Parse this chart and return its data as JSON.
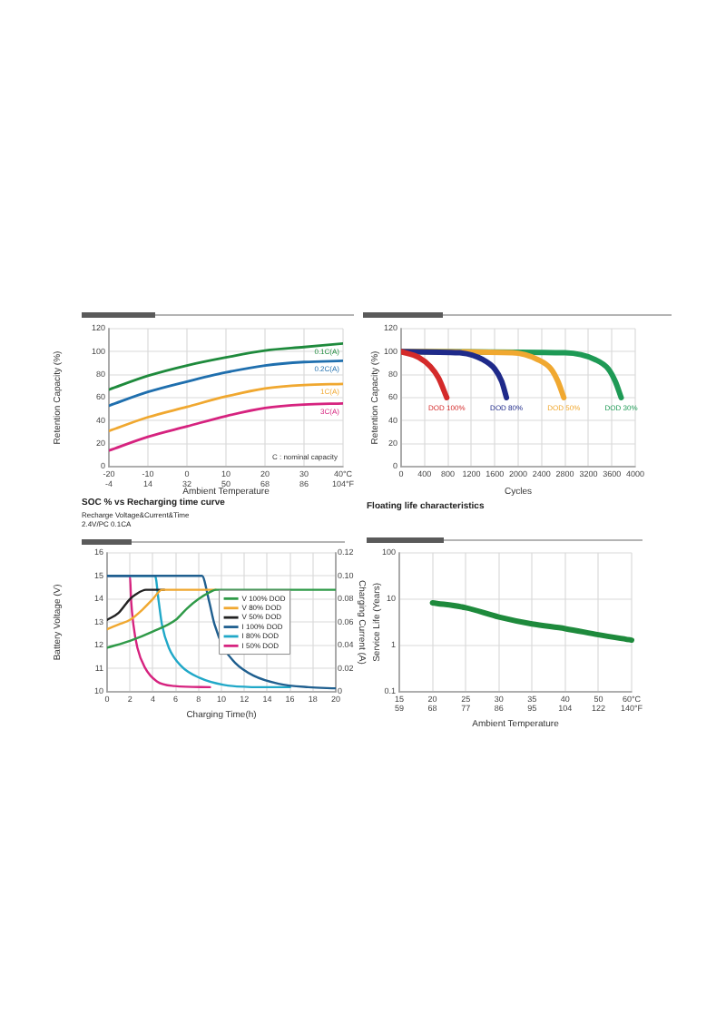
{
  "chart_data": [
    {
      "type": "line",
      "ylabel": "Retention Capacity (%)",
      "xlabel": "Ambient Temperature",
      "x": [
        -20,
        -10,
        0,
        10,
        20,
        30,
        40
      ],
      "series": [
        {
          "name": "0.1C(A)",
          "color": "#1e8a3c",
          "values": [
            67,
            79,
            88,
            95,
            101,
            104,
            107
          ]
        },
        {
          "name": "0.2C(A)",
          "color": "#1f6fae",
          "values": [
            53,
            65,
            74,
            82,
            88,
            91,
            92
          ]
        },
        {
          "name": "1C(A)",
          "color": "#f0a830",
          "values": [
            31,
            43,
            52,
            61,
            68,
            71,
            72
          ]
        },
        {
          "name": "3C(A)",
          "color": "#d6237f",
          "values": [
            14,
            26,
            35,
            44,
            51,
            54,
            55
          ]
        }
      ],
      "xlim": [
        -20,
        40
      ],
      "xticks": [
        -20,
        -10,
        0,
        10,
        20,
        30,
        {
          "value": 40,
          "label": "40°C"
        }
      ],
      "x2lim": [
        -4,
        104
      ],
      "x2ticks": [
        -4,
        14,
        32,
        50,
        68,
        86,
        {
          "value": 104,
          "label": "104°F"
        }
      ],
      "ylim": [
        0,
        120
      ],
      "yticks": [
        0,
        20,
        40,
        60,
        80,
        100,
        120
      ],
      "grid": true,
      "annotations": [
        "C : nominal capacity"
      ]
    },
    {
      "type": "line",
      "ylabel": "Retention Capacity (%)",
      "xlabel": "Cycles",
      "series": [
        {
          "name": "DOD 100%",
          "color": "#d42a2a",
          "x": [
            0,
            300,
            500,
            640,
            780
          ],
          "values": [
            100,
            95,
            87,
            77,
            60
          ]
        },
        {
          "name": "DOD 80%",
          "color": "#1f2a8a",
          "x": [
            0,
            1000,
            1400,
            1600,
            1720,
            1800
          ],
          "values": [
            100,
            99,
            93,
            85,
            74,
            60
          ]
        },
        {
          "name": "DOD 50%",
          "color": "#f0a830",
          "x": [
            0,
            1900,
            2340,
            2560,
            2680,
            2780
          ],
          "values": [
            100,
            99,
            93,
            85,
            74,
            60
          ]
        },
        {
          "name": "DOD 30%",
          "color": "#1e9a55",
          "x": [
            0,
            2800,
            3320,
            3540,
            3660,
            3760
          ],
          "values": [
            100,
            99,
            93,
            85,
            74,
            60
          ]
        }
      ],
      "xlim": [
        0,
        4000
      ],
      "xticks": [
        0,
        400,
        800,
        1200,
        1600,
        2000,
        2400,
        2800,
        3200,
        3600,
        4000
      ],
      "ylim": [
        0,
        120
      ],
      "yticks": [
        0,
        20,
        40,
        60,
        80,
        100,
        120
      ],
      "grid": true
    },
    {
      "type": "line",
      "title": "SOC % vs Recharging time curve",
      "subtitle": "Recharge Voltage&Current&Time\n2.4V/PC 0.1CA",
      "xlabel": "Charging Time(h)",
      "ylabel": "Battery Voltage (V)",
      "y2label": "Charging Current (A)",
      "series": [
        {
          "name": "V 100% DOD",
          "color": "#2f9a48",
          "x": [
            0,
            2,
            4,
            6,
            7,
            8,
            9,
            9.5,
            20
          ],
          "values": [
            11.9,
            12.2,
            12.6,
            13.1,
            13.6,
            14.0,
            14.3,
            14.4,
            14.4
          ]
        },
        {
          "name": "V 80% DOD",
          "color": "#f0a830",
          "x": [
            0,
            1,
            2,
            3,
            4,
            4.8,
            9.5
          ],
          "values": [
            12.7,
            12.9,
            13.1,
            13.5,
            14.0,
            14.4,
            14.4
          ]
        },
        {
          "name": "V 50% DOD",
          "color": "#222222",
          "x": [
            0,
            1,
            2,
            2.5,
            3.4,
            5
          ],
          "values": [
            13.1,
            13.4,
            14.0,
            14.2,
            14.4,
            14.4
          ]
        },
        {
          "name": "I 100% DOD",
          "color": "#1f5f8f",
          "axis": "y2",
          "x": [
            0,
            8.3,
            8.9,
            9.4,
            10.2,
            11.2,
            12.8,
            15,
            17.6,
            20
          ],
          "values": [
            0.1,
            0.1,
            0.079,
            0.058,
            0.038,
            0.025,
            0.014,
            0.007,
            0.004,
            0.003
          ]
        },
        {
          "name": "I 80% DOD",
          "color": "#20a8c8",
          "axis": "y2",
          "x": [
            0,
            4.2,
            4.5,
            4.8,
            5.4,
            6.5,
            8.1,
            10.2,
            13.4,
            16
          ],
          "values": [
            0.1,
            0.1,
            0.079,
            0.058,
            0.038,
            0.022,
            0.012,
            0.006,
            0.004,
            0.004
          ]
        },
        {
          "name": "I 50% DOD",
          "color": "#d6237f",
          "axis": "y2",
          "x": [
            0,
            2,
            2.1,
            2.3,
            2.65,
            3.3,
            4.35,
            5.9,
            9
          ],
          "values": [
            0.1,
            0.1,
            0.079,
            0.058,
            0.038,
            0.021,
            0.009,
            0.005,
            0.004
          ]
        }
      ],
      "xlim": [
        0,
        20
      ],
      "xticks": [
        0,
        2,
        4,
        6,
        8,
        10,
        12,
        14,
        16,
        18,
        20
      ],
      "ylim": [
        10,
        16
      ],
      "yticks": [
        10,
        11,
        12,
        13,
        14,
        15,
        16
      ],
      "y2lim": [
        0,
        0.12
      ],
      "y2ticks": [
        0,
        0.02,
        0.04,
        0.06,
        0.08,
        {
          "value": 0.1,
          "label": "0.10"
        },
        0.12
      ],
      "grid": true,
      "legend": "right"
    },
    {
      "type": "line",
      "title": "Floating life characteristics",
      "xlabel": "Ambient Temperature",
      "ylabel": "Service Life (Years)",
      "categories": [
        "15\n59",
        "20\n68",
        "25\n77",
        "30\n86",
        "35\n95",
        "40\n104",
        "50\n122",
        "60°C\n140°F"
      ],
      "values": [
        null,
        8.3,
        6.5,
        4.1,
        2.9,
        2.3,
        1.7,
        1.3
      ],
      "color": "#1e8a3c",
      "log": true,
      "ylim": [
        0.1,
        100
      ],
      "yticks": [
        0.1,
        1,
        10,
        100
      ],
      "grid": true
    }
  ]
}
